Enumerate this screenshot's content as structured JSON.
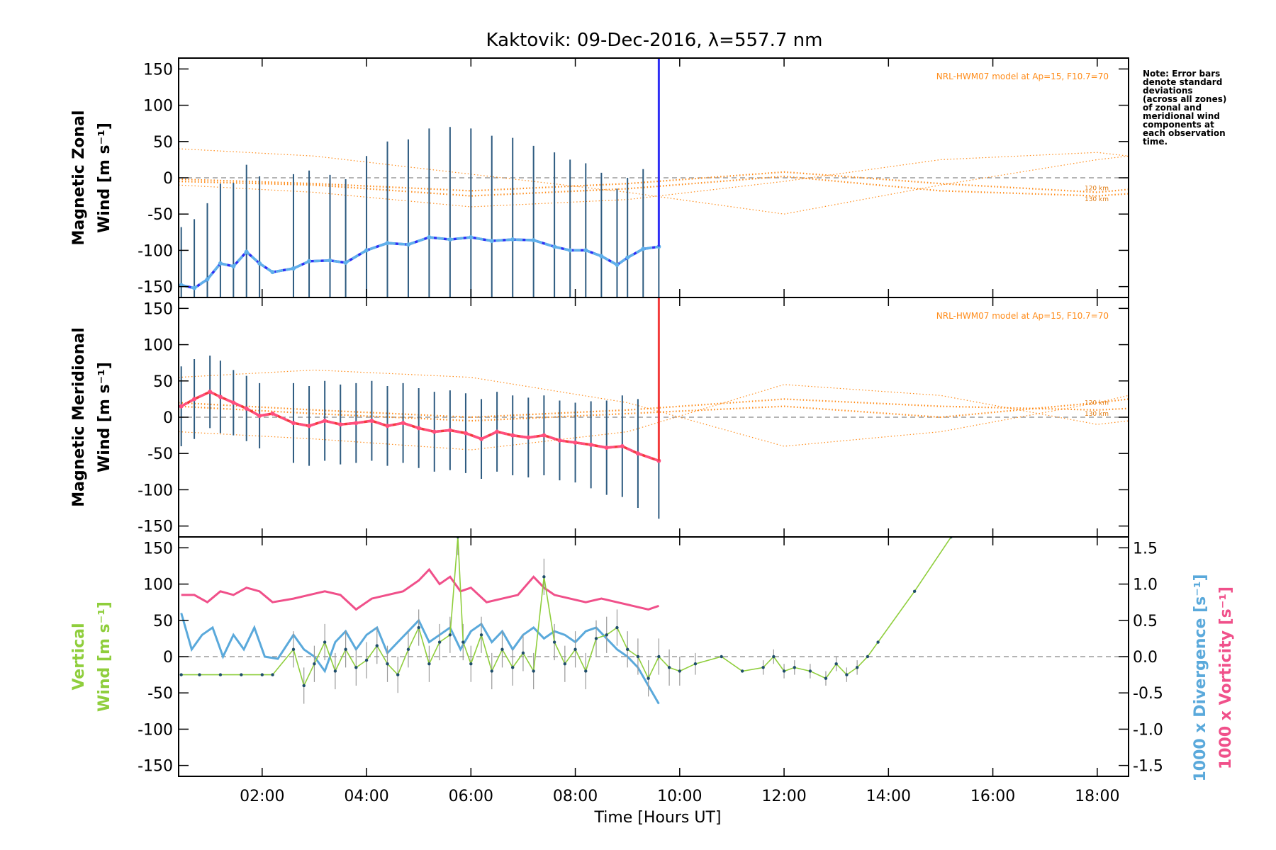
{
  "chart_data": {
    "type": "line",
    "title": "Kaktovik: 09-Dec-2016, λ=557.7 nm",
    "xlabel": "Time [Hours UT]",
    "xlim": [
      0.4,
      18.6
    ],
    "x_ticks": [
      2,
      4,
      6,
      8,
      10,
      12,
      14,
      16,
      18
    ],
    "x_tick_labels": [
      "02:00",
      "04:00",
      "06:00",
      "08:00",
      "10:00",
      "12:00",
      "14:00",
      "16:00",
      "18:00"
    ],
    "note_lines": [
      "Note: Error bars",
      "denote standard",
      "deviations",
      "(across all zones)",
      "of zonal and",
      "meridional wind",
      "components at",
      "each observation",
      "time."
    ],
    "colors": {
      "zonal": "#2d2df5",
      "zonal_light": "#5fb0ea",
      "meridional": "#f23a3a",
      "meridional_light": "#ff4f7e",
      "errorbar": "#2e5b80",
      "model": "#ff8c1a",
      "vertical": "#8fce3c",
      "divergence": "#5aa9db",
      "vorticity": "#f0508a",
      "zero_line": "#888888"
    },
    "panels": [
      {
        "id": "zonal",
        "ylabel_line1": "Magnetic Zonal",
        "ylabel_line2": "Wind [m s⁻¹]",
        "ylim": [
          -165,
          165
        ],
        "y_ticks": [
          -150,
          -100,
          -50,
          0,
          50,
          100,
          150
        ],
        "model_label": "NRL-HWM07 model at Ap=15, F10.7=70",
        "km_labels": [
          "120 km",
          "130 km"
        ],
        "km_label_values": [
          -17,
          -32
        ],
        "series": [
          {
            "name": "",
            "x": [
              0.45,
              0.7,
              0.95,
              1.2,
              1.45,
              1.7,
              1.95,
              2.2,
              2.6,
              2.9,
              3.3,
              3.6,
              4.0,
              4.4,
              4.8,
              5.2,
              5.6,
              6.0,
              6.4,
              6.8,
              7.2,
              7.6,
              7.9,
              8.2,
              8.5,
              8.8,
              9.0,
              9.3,
              9.6
            ],
            "y": [
              -148,
              -152,
              -140,
              -118,
              -122,
              -102,
              -118,
              -130,
              -125,
              -115,
              -114,
              -117,
              -100,
              -90,
              -92,
              -82,
              -85,
              -82,
              -87,
              -85,
              -86,
              -95,
              -100,
              -100,
              -108,
              -120,
              -110,
              -98,
              -95
            ]
          }
        ],
        "error_sd": [
          80,
          95,
          105,
          110,
          115,
          120,
          120,
          0,
          130,
          125,
          118,
          115,
          130,
          140,
          145,
          150,
          155,
          150,
          145,
          140,
          130,
          130,
          125,
          120,
          115,
          105,
          110,
          110,
          110
        ],
        "model_curves": [
          {
            "x": [
              0.4,
              3,
              6,
              9,
              12,
              15,
              18,
              18.6
            ],
            "y": [
              -2,
              -8,
              -18,
              -8,
              8,
              -8,
              -20,
              -16
            ]
          },
          {
            "x": [
              0.4,
              3,
              6,
              9,
              12,
              15,
              18,
              18.6
            ],
            "y": [
              -5,
              -10,
              -25,
              -15,
              2,
              -18,
              -25,
              -22
            ]
          },
          {
            "x": [
              0.4,
              3,
              6,
              9,
              12,
              15,
              18,
              18.6
            ],
            "y": [
              40,
              30,
              5,
              -20,
              -50,
              -10,
              25,
              30
            ]
          },
          {
            "x": [
              0.4,
              3,
              6,
              9,
              12,
              15,
              18,
              18.6
            ],
            "y": [
              -10,
              -20,
              -40,
              -30,
              -5,
              25,
              35,
              30
            ]
          }
        ],
        "spike": {
          "x": 9.6,
          "y_from": -95,
          "y_to": 165
        }
      },
      {
        "id": "meridional",
        "ylabel_line1": "Magnetic Meridional",
        "ylabel_line2": "Wind [m s⁻¹]",
        "ylim": [
          -165,
          165
        ],
        "y_ticks": [
          -150,
          -100,
          -50,
          0,
          50,
          100,
          150
        ],
        "model_label": "NRL-HWM07 model at Ap=15, F10.7=70",
        "km_labels": [
          "120 km",
          "130 km"
        ],
        "km_label_values": [
          17,
          2
        ],
        "series": [
          {
            "name": "",
            "x": [
              0.45,
              0.7,
              1.0,
              1.2,
              1.45,
              1.7,
              1.95,
              2.2,
              2.6,
              2.9,
              3.2,
              3.5,
              3.8,
              4.1,
              4.4,
              4.7,
              5.0,
              5.3,
              5.6,
              5.9,
              6.2,
              6.5,
              6.8,
              7.1,
              7.4,
              7.7,
              8.0,
              8.3,
              8.6,
              8.9,
              9.2,
              9.6
            ],
            "y": [
              15,
              25,
              35,
              28,
              20,
              12,
              2,
              5,
              -8,
              -12,
              -5,
              -10,
              -8,
              -5,
              -12,
              -8,
              -15,
              -20,
              -18,
              -22,
              -30,
              -20,
              -25,
              -28,
              -25,
              -32,
              -35,
              -38,
              -42,
              -40,
              -50,
              -60
            ]
          }
        ],
        "error_sd": [
          55,
          55,
          50,
          50,
          45,
          45,
          45,
          0,
          55,
          55,
          55,
          55,
          55,
          55,
          55,
          55,
          55,
          55,
          55,
          55,
          55,
          55,
          55,
          55,
          55,
          55,
          55,
          60,
          65,
          70,
          75,
          80
        ],
        "model_curves": [
          {
            "x": [
              0.4,
              3,
              6,
              9,
              12,
              15,
              18,
              18.6
            ],
            "y": [
              20,
              10,
              0,
              10,
              25,
              15,
              10,
              12
            ]
          },
          {
            "x": [
              0.4,
              3,
              6,
              9,
              12,
              15,
              18,
              18.6
            ],
            "y": [
              15,
              5,
              -5,
              5,
              15,
              0,
              20,
              25
            ]
          },
          {
            "x": [
              0.4,
              3,
              6,
              9,
              12,
              15,
              18,
              18.6
            ],
            "y": [
              55,
              65,
              55,
              20,
              -40,
              -20,
              20,
              30
            ]
          },
          {
            "x": [
              0.4,
              3,
              6,
              9,
              12,
              15,
              18,
              18.6
            ],
            "y": [
              -20,
              -30,
              -45,
              -20,
              45,
              30,
              -10,
              -5
            ]
          }
        ],
        "spike": {
          "x": 9.6,
          "y_from": -60,
          "y_to": 165
        }
      },
      {
        "id": "vertical",
        "ylabel_line1": "Vertical",
        "ylabel_line2": "Wind [m s⁻¹]",
        "ylim": [
          -165,
          165
        ],
        "y_ticks": [
          -150,
          -100,
          -50,
          0,
          50,
          100,
          150
        ],
        "right_ylim": [
          -1.65,
          1.65
        ],
        "right_ticks": [
          -1.5,
          -1.0,
          -0.5,
          0.0,
          0.5,
          1.0,
          1.5
        ],
        "right_tick_labels": [
          "-1.5",
          "-1.0",
          "-0.5",
          "0.0",
          "0.5",
          "1.0",
          "1.5"
        ],
        "right_label_divergence": "1000 x Divergence [s⁻¹]",
        "right_label_vorticity": "1000 x Vorticity [s⁻¹]",
        "vertical_wind": {
          "x": [
            0.45,
            0.8,
            1.2,
            1.6,
            2.0,
            2.2,
            2.6,
            2.8,
            3.0,
            3.2,
            3.4,
            3.6,
            3.8,
            4.0,
            4.2,
            4.4,
            4.6,
            4.8,
            5.0,
            5.2,
            5.4,
            5.6,
            5.75,
            5.85,
            6.0,
            6.2,
            6.4,
            6.6,
            6.8,
            7.0,
            7.2,
            7.4,
            7.6,
            7.8,
            8.0,
            8.2,
            8.4,
            8.6,
            8.8,
            9.0,
            9.2,
            9.4,
            9.6,
            9.8,
            10.0,
            10.3,
            10.8,
            11.2,
            11.6,
            11.8,
            12.0,
            12.2,
            12.5,
            12.8,
            13.0,
            13.2,
            13.4,
            13.6,
            13.8,
            14.5,
            15.2
          ],
          "y": [
            -25,
            -25,
            -25,
            -25,
            -25,
            -25,
            10,
            -40,
            -10,
            20,
            -20,
            10,
            -15,
            -5,
            15,
            -10,
            -25,
            10,
            40,
            -10,
            20,
            30,
            165,
            20,
            -10,
            30,
            -20,
            10,
            -15,
            5,
            -20,
            110,
            20,
            -10,
            10,
            -20,
            25,
            30,
            40,
            10,
            0,
            -30,
            0,
            -15,
            -20,
            -10,
            0,
            -20,
            -15,
            0,
            -20,
            -15,
            -20,
            -30,
            -10,
            -25,
            -15,
            0,
            20,
            90,
            165
          ]
        },
        "vertical_error_sd": [
          0,
          0,
          0,
          0,
          0,
          0,
          25,
          25,
          25,
          25,
          25,
          25,
          25,
          25,
          25,
          25,
          25,
          25,
          25,
          25,
          25,
          25,
          25,
          25,
          25,
          25,
          25,
          25,
          25,
          25,
          25,
          25,
          25,
          25,
          25,
          25,
          25,
          25,
          25,
          25,
          25,
          25,
          25,
          25,
          20,
          15,
          0,
          0,
          10,
          10,
          10,
          10,
          10,
          10,
          10,
          10,
          10,
          0,
          0,
          0,
          0
        ],
        "divergence": {
          "x": [
            0.45,
            0.65,
            0.85,
            1.05,
            1.25,
            1.45,
            1.65,
            1.85,
            2.05,
            2.3,
            2.6,
            2.8,
            3.0,
            3.2,
            3.4,
            3.6,
            3.8,
            4.0,
            4.2,
            4.4,
            4.6,
            4.8,
            5.0,
            5.2,
            5.4,
            5.6,
            5.8,
            6.0,
            6.2,
            6.4,
            6.6,
            6.8,
            7.0,
            7.2,
            7.4,
            7.6,
            7.8,
            8.0,
            8.2,
            8.4,
            8.6,
            8.8,
            9.0,
            9.2,
            9.4,
            9.6
          ],
          "y": [
            0.6,
            0.1,
            0.3,
            0.4,
            0.0,
            0.3,
            0.1,
            0.4,
            0.0,
            -0.03,
            0.3,
            0.1,
            0.0,
            -0.2,
            0.2,
            0.35,
            0.1,
            0.3,
            0.4,
            0.05,
            0.2,
            0.35,
            0.5,
            0.2,
            0.3,
            0.4,
            0.1,
            0.35,
            0.45,
            0.2,
            0.35,
            0.1,
            0.3,
            0.4,
            0.25,
            0.35,
            0.3,
            0.2,
            0.35,
            0.4,
            0.25,
            0.1,
            0.0,
            -0.15,
            -0.4,
            -0.65
          ]
        },
        "vorticity": {
          "x": [
            0.45,
            0.7,
            0.95,
            1.2,
            1.45,
            1.7,
            1.95,
            2.2,
            2.6,
            2.9,
            3.2,
            3.5,
            3.8,
            4.1,
            4.4,
            4.7,
            5.0,
            5.2,
            5.4,
            5.6,
            5.8,
            6.0,
            6.3,
            6.6,
            6.9,
            7.2,
            7.4,
            7.6,
            7.9,
            8.2,
            8.5,
            8.8,
            9.1,
            9.4,
            9.6
          ],
          "y": [
            0.85,
            0.85,
            0.75,
            0.9,
            0.85,
            0.95,
            0.9,
            0.75,
            0.8,
            0.85,
            0.9,
            0.85,
            0.65,
            0.8,
            0.85,
            0.9,
            1.05,
            1.2,
            1.0,
            1.1,
            0.9,
            0.95,
            0.75,
            0.8,
            0.85,
            1.1,
            0.95,
            0.85,
            0.8,
            0.75,
            0.8,
            0.75,
            0.7,
            0.65,
            0.7
          ]
        }
      }
    ]
  }
}
